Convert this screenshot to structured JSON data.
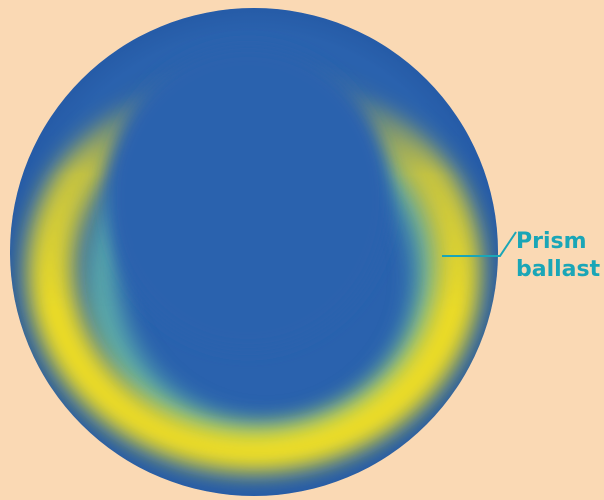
{
  "colors": {
    "background": "#FAD9B4",
    "lens_blue": "#2A62AE",
    "ballast_yellow": "#F7E21B",
    "ballast_green": "#6CC3A8",
    "callout": "#1AA6B7"
  },
  "callout": {
    "line1": "Prism",
    "line2": "ballast"
  }
}
